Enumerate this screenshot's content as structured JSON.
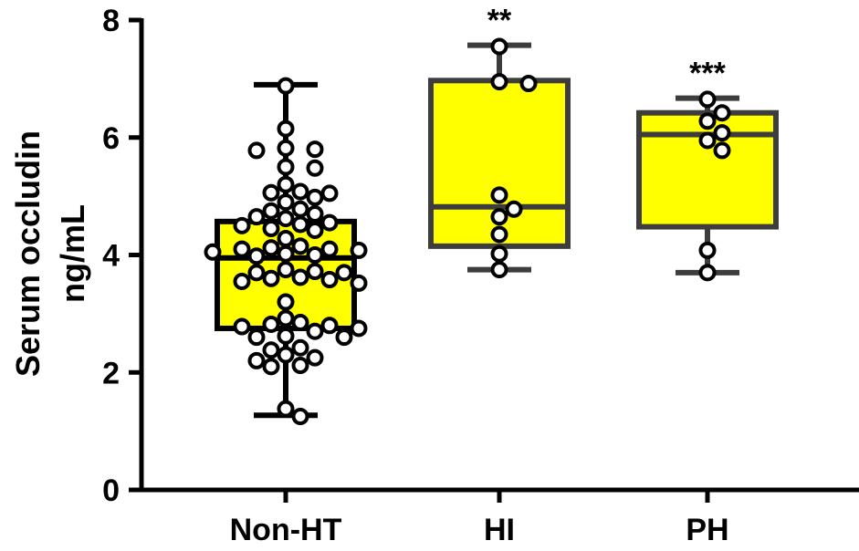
{
  "chart_data": {
    "type": "box",
    "ylabel_lines": [
      "Serum occludin",
      "ng/mL"
    ],
    "ylim": [
      0,
      8
    ],
    "yticks": [
      0,
      2,
      4,
      6,
      8
    ],
    "categories": [
      "Non-HT",
      "HI",
      "PH"
    ],
    "box_color": "#ffff00",
    "groups": [
      {
        "name": "Non-HT",
        "significance": "",
        "stroke": "#000000",
        "min": 1.27,
        "q1": 2.75,
        "median": 3.95,
        "q3": 4.57,
        "max": 6.9,
        "points": [
          6.88,
          6.15,
          5.82,
          5.8,
          5.78,
          5.5,
          5.48,
          5.2,
          5.08,
          5.05,
          5.06,
          4.98,
          4.9,
          4.78,
          4.75,
          4.7,
          4.65,
          4.62,
          4.55,
          4.52,
          4.5,
          4.45,
          4.42,
          4.28,
          4.15,
          4.12,
          4.1,
          4.1,
          4.08,
          4.05,
          4.02,
          4.0,
          3.98,
          3.75,
          3.72,
          3.7,
          3.7,
          3.62,
          3.6,
          3.58,
          3.55,
          3.52,
          3.2,
          2.92,
          2.85,
          2.82,
          2.8,
          2.78,
          2.75,
          2.7,
          2.62,
          2.6,
          2.6,
          2.42,
          2.38,
          2.3,
          2.25,
          2.2,
          2.12,
          2.1,
          1.38,
          1.25
        ]
      },
      {
        "name": "HI",
        "significance": "**",
        "stroke": "#3d3d3d",
        "min": 3.75,
        "q1": 4.15,
        "median": 4.82,
        "q3": 6.97,
        "max": 7.57,
        "points": [
          7.55,
          6.95,
          6.92,
          5.02,
          4.78,
          4.65,
          4.35,
          4.02,
          3.75
        ]
      },
      {
        "name": "PH",
        "significance": "***",
        "stroke": "#3d3d3d",
        "min": 3.7,
        "q1": 4.48,
        "median": 6.05,
        "q3": 6.42,
        "max": 6.67,
        "points": [
          6.65,
          6.42,
          6.28,
          6.08,
          5.95,
          5.78,
          4.08,
          3.7
        ]
      }
    ]
  }
}
